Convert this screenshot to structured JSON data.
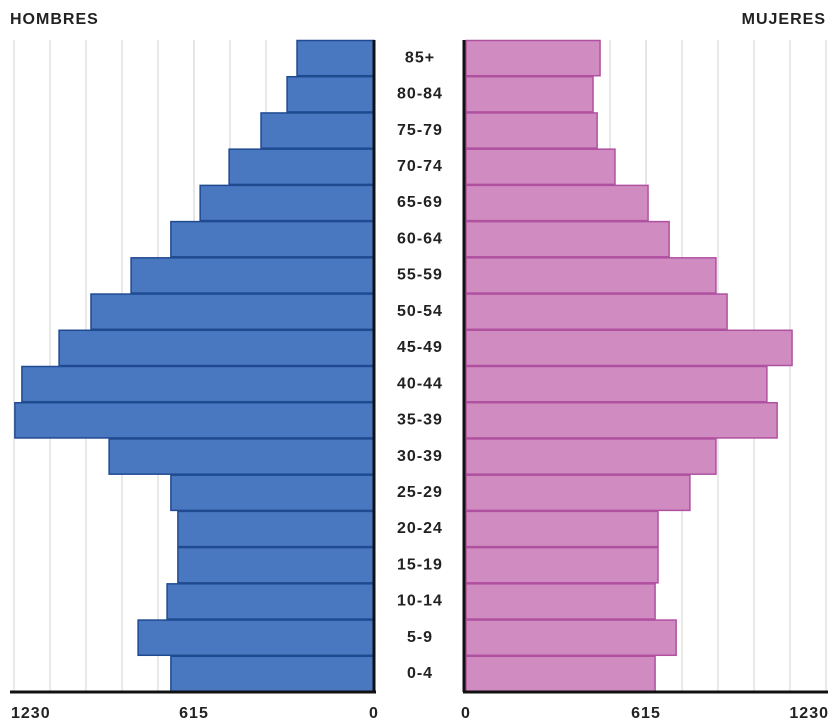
{
  "chart_data": {
    "type": "pyramid",
    "categories": [
      "85+",
      "80-84",
      "75-79",
      "70-74",
      "65-69",
      "60-64",
      "55-59",
      "50-54",
      "45-49",
      "40-44",
      "35-39",
      "30-39",
      "25-29",
      "20-24",
      "15-19",
      "10-14",
      "5-9",
      "0-4"
    ],
    "series": [
      {
        "name": "HOMBRES",
        "color": "#4a78c0",
        "values": [
          263,
          297,
          386,
          495,
          594,
          694,
          830,
          967,
          1076,
          1203,
          1227,
          905,
          694,
          670,
          670,
          707,
          806,
          694
        ]
      },
      {
        "name": "MUJERES",
        "color": "#d08cc0",
        "values": [
          458,
          434,
          448,
          509,
          622,
          694,
          854,
          892,
          1114,
          1028,
          1063,
          854,
          765,
          656,
          656,
          646,
          718,
          646
        ]
      }
    ],
    "xlim": [
      0,
      1230
    ],
    "xticks": [
      0,
      615,
      1230
    ],
    "grid": true
  }
}
